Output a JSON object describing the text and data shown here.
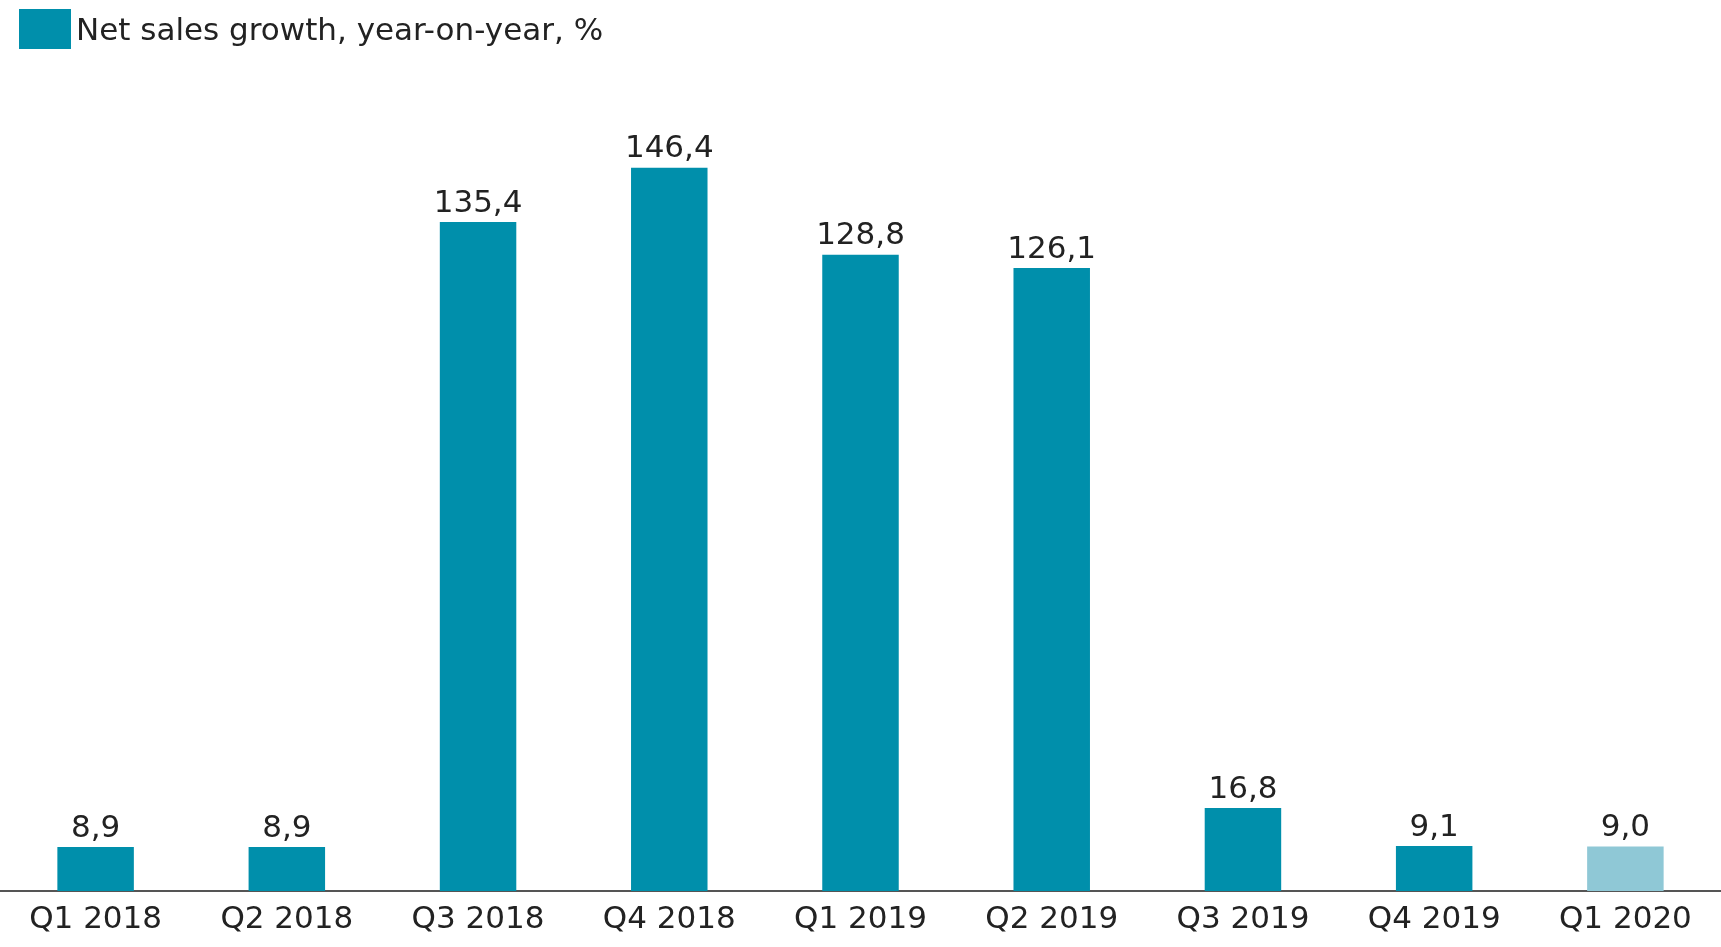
{
  "chart_data": {
    "type": "bar",
    "categories": [
      "Q1 2018",
      "Q2 2018",
      "Q3 2018",
      "Q4 2018",
      "Q1 2019",
      "Q2 2019",
      "Q3 2019",
      "Q4 2019",
      "Q1 2020"
    ],
    "series": [
      {
        "name": "Net sales growth, year-on-year, %",
        "color": "#008fab",
        "values": [
          8.9,
          8.9,
          135.4,
          146.4,
          128.8,
          126.1,
          16.8,
          9.1,
          9.0
        ],
        "colors": [
          "#008fab",
          "#008fab",
          "#008fab",
          "#008fab",
          "#008fab",
          "#008fab",
          "#008fab",
          "#008fab",
          "#8fc8d6"
        ],
        "value_labels": [
          "8,9",
          "8,9",
          "135,4",
          "146,4",
          "128,8",
          "126,1",
          "16,8",
          "9,1",
          "9,0"
        ]
      }
    ],
    "legend": "top left"
  }
}
